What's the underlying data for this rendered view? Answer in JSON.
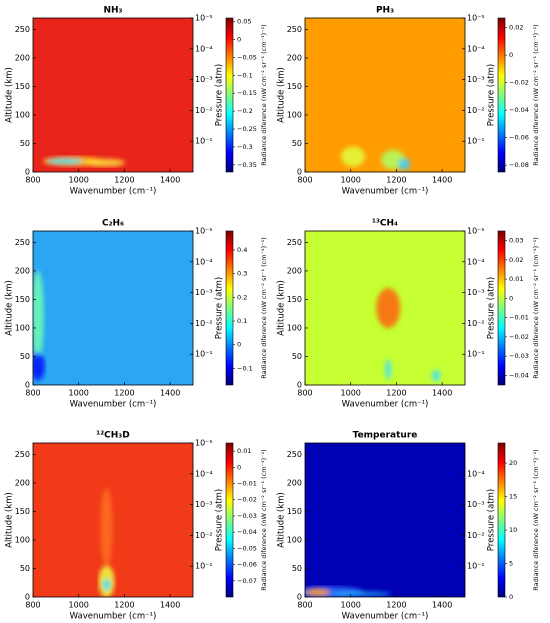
{
  "chart_data": [
    {
      "type": "heatmap",
      "title": "NH₃",
      "xlabel": "Wavenumber (cm⁻¹)",
      "ylabel": "Altitude (km)",
      "y2label": "Pressure (atm)",
      "colorbar_label": "Radiance diference (nW cm⁻² sr⁻¹ (cm⁻¹)⁻¹)",
      "color": "#e8241a",
      "xlim": [
        800,
        1500
      ],
      "xticks": [
        800,
        1000,
        1200,
        1400
      ],
      "ylim": [
        0,
        270
      ],
      "yticks": [
        0,
        50,
        100,
        150,
        200,
        250
      ],
      "y2scale": "log",
      "y2lim": [
        1,
        1e-05
      ],
      "y2ticks": [
        {
          "value": 1e-05,
          "label": "10⁻⁵"
        },
        {
          "value": 0.0001,
          "label": "10⁻⁴"
        },
        {
          "value": 0.001,
          "label": "10⁻³"
        },
        {
          "value": 0.01,
          "label": "10⁻²"
        },
        {
          "value": 0.1,
          "label": "10⁻¹"
        }
      ],
      "clim": [
        -0.37,
        0.06
      ],
      "cticks": [
        0.05,
        0,
        {
          "value": -0.05,
          "label": "−0.05"
        },
        {
          "value": -0.1,
          "label": "−0.1"
        },
        {
          "value": -0.15,
          "label": "−0.15"
        },
        {
          "value": -0.2,
          "label": "−0.2"
        },
        {
          "value": -0.25,
          "label": "−0.25"
        },
        {
          "value": -0.3,
          "label": "−0.3"
        },
        {
          "value": -0.35,
          "label": "−0.35"
        }
      ]
    },
    {
      "type": "heatmap",
      "title": "PH₃",
      "xlabel": "Wavenumber (cm⁻¹)",
      "ylabel": "Altitude (km)",
      "y2label": "Pressure (atm)",
      "colorbar_label": "Radiance diference (nW cm⁻² sr⁻¹ (cm⁻¹)⁻¹)",
      "color": "#ff9c00",
      "xlim": [
        800,
        1500
      ],
      "xticks": [
        800,
        1000,
        1200,
        1400
      ],
      "ylim": [
        0,
        270
      ],
      "yticks": [
        0,
        50,
        100,
        150,
        200,
        250
      ],
      "y2scale": "log",
      "y2lim": [
        1,
        1e-05
      ],
      "y2ticks": [
        {
          "value": 1e-05,
          "label": "10⁻⁵"
        },
        {
          "value": 0.0001,
          "label": "10⁻⁴"
        },
        {
          "value": 0.001,
          "label": "10⁻³"
        },
        {
          "value": 0.01,
          "label": "10⁻²"
        },
        {
          "value": 0.1,
          "label": "10⁻¹"
        }
      ],
      "clim": [
        -0.085,
        0.027
      ],
      "cticks": [
        0.02,
        0,
        {
          "value": -0.02,
          "label": "−0.02"
        },
        {
          "value": -0.04,
          "label": "−0.04"
        },
        {
          "value": -0.06,
          "label": "−0.06"
        },
        {
          "value": -0.08,
          "label": "−0.08"
        }
      ]
    },
    {
      "type": "heatmap",
      "title": "C₂H₆",
      "xlabel": "Wavenumber (cm⁻¹)",
      "ylabel": "Altitude (km)",
      "y2label": "Pressure (atm)",
      "colorbar_label": "Radiance diference (nW cm⁻² sr⁻¹ (cm⁻¹)⁻¹)",
      "color": "#2aa6f2",
      "xlim": [
        800,
        1500
      ],
      "xticks": [
        800,
        1000,
        1200,
        1400
      ],
      "ylim": [
        0,
        270
      ],
      "yticks": [
        0,
        50,
        100,
        150,
        200,
        250
      ],
      "y2scale": "log",
      "y2lim": [
        1,
        1e-05
      ],
      "y2ticks": [
        {
          "value": 1e-05,
          "label": "10⁻⁵"
        },
        {
          "value": 0.0001,
          "label": "10⁻⁴"
        },
        {
          "value": 0.001,
          "label": "10⁻³"
        },
        {
          "value": 0.01,
          "label": "10⁻²"
        },
        {
          "value": 0.1,
          "label": "10⁻¹"
        }
      ],
      "clim": [
        -0.17,
        0.48
      ],
      "cticks": [
        0.4,
        0.3,
        0.2,
        0.1,
        0,
        {
          "value": -0.1,
          "label": "−0.1"
        }
      ]
    },
    {
      "type": "heatmap",
      "title": "¹³CH₄",
      "xlabel": "Wavenumber (cm⁻¹)",
      "ylabel": "Altitude (km)",
      "y2label": "Pressure (atm)",
      "colorbar_label": "Radiance diference (nW cm⁻² sr⁻¹ (cm⁻¹)⁻¹)",
      "color": "#c6ff32",
      "xlim": [
        800,
        1500
      ],
      "xticks": [
        800,
        1000,
        1200,
        1400
      ],
      "ylim": [
        0,
        270
      ],
      "yticks": [
        0,
        50,
        100,
        150,
        200,
        250
      ],
      "y2scale": "log",
      "y2lim": [
        1,
        1e-05
      ],
      "y2ticks": [
        {
          "value": 1e-05,
          "label": "10⁻⁵"
        },
        {
          "value": 0.0001,
          "label": "10⁻⁴"
        },
        {
          "value": 0.001,
          "label": "10⁻³"
        },
        {
          "value": 0.01,
          "label": "10⁻²"
        },
        {
          "value": 0.1,
          "label": "10⁻¹"
        }
      ],
      "clim": [
        -0.045,
        0.035
      ],
      "cticks": [
        0.03,
        0.02,
        0.01,
        0,
        {
          "value": -0.01,
          "label": "−0.01"
        },
        {
          "value": -0.02,
          "label": "−0.02"
        },
        {
          "value": -0.03,
          "label": "−0.03"
        },
        {
          "value": -0.04,
          "label": "−0.04"
        }
      ]
    },
    {
      "type": "heatmap",
      "title": "¹²CH₃D",
      "xlabel": "Wavenumber (cm⁻¹)",
      "ylabel": "Altitude (km)",
      "y2label": "Pressure (atm)",
      "colorbar_label": "Radiance diference (nW cm⁻² sr⁻¹ (cm⁻¹)⁻¹)",
      "color": "#f03a18",
      "xlim": [
        800,
        1500
      ],
      "xticks": [
        800,
        1000,
        1200,
        1400
      ],
      "ylim": [
        0,
        270
      ],
      "yticks": [
        0,
        50,
        100,
        150,
        200,
        250
      ],
      "y2scale": "log",
      "y2lim": [
        1,
        1e-05
      ],
      "y2ticks": [
        {
          "value": 1e-05,
          "label": "10⁻⁵"
        },
        {
          "value": 0.0001,
          "label": "10⁻⁴"
        },
        {
          "value": 0.001,
          "label": "10⁻³"
        },
        {
          "value": 0.01,
          "label": "10⁻²"
        },
        {
          "value": 0.1,
          "label": "10⁻¹"
        }
      ],
      "clim": [
        -0.08,
        0.015
      ],
      "cticks": [
        0.01,
        0,
        {
          "value": -0.01,
          "label": "−0.01"
        },
        {
          "value": -0.02,
          "label": "−0.02"
        },
        {
          "value": -0.03,
          "label": "−0.03"
        },
        {
          "value": -0.04,
          "label": "−0.04"
        },
        {
          "value": -0.05,
          "label": "−0.05"
        },
        {
          "value": -0.06,
          "label": "−0.06"
        },
        {
          "value": -0.07,
          "label": "−0.07"
        }
      ]
    },
    {
      "type": "heatmap",
      "title": "Temperature",
      "xlabel": "Wavenumber (cm⁻¹)",
      "ylabel": "Altitude (km)",
      "y2label": "Pressure (atm)",
      "colorbar_label": "Radiance diference (nW cm⁻² sr⁻¹ (cm⁻¹)⁻¹)",
      "color": "#0000b4",
      "xlim": [
        800,
        1500
      ],
      "xticks": [
        800,
        1000,
        1200,
        1400
      ],
      "ylim": [
        0,
        270
      ],
      "yticks": [
        0,
        50,
        100,
        150,
        200,
        250
      ],
      "y2scale": "log",
      "y2lim": [
        1,
        1e-05
      ],
      "y2ticks": [
        {
          "value": 0.0001,
          "label": "10⁻⁴"
        },
        {
          "value": 0.001,
          "label": "10⁻³"
        },
        {
          "value": 0.01,
          "label": "10⁻²"
        },
        {
          "value": 0.1,
          "label": "10⁻¹"
        }
      ],
      "clim": [
        0,
        23
      ],
      "cticks": [
        20,
        15,
        10,
        5,
        0
      ]
    }
  ]
}
